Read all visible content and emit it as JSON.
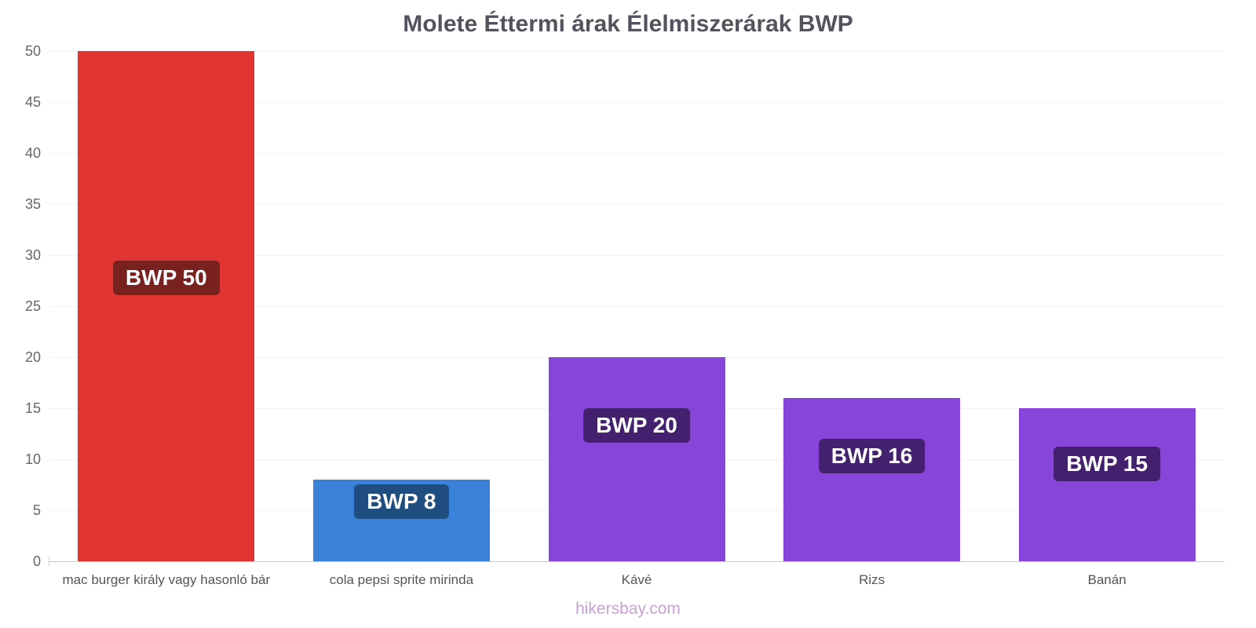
{
  "chart_data": {
    "type": "bar",
    "title": "Molete Éttermi árak Élelmiszerárak BWP",
    "categories": [
      "mac burger király vagy hasonló bár",
      "cola pepsi sprite mirinda",
      "Kávé",
      "Rizs",
      "Banán"
    ],
    "values": [
      50,
      8,
      20,
      16,
      15
    ],
    "value_labels": [
      "BWP 50",
      "BWP 8",
      "BWP 20",
      "BWP 16",
      "BWP 15"
    ],
    "bar_colors": [
      "#e03531",
      "#3a82d9",
      "#8745d9",
      "#8745d9",
      "#8745d9"
    ],
    "label_bg_colors": [
      "#79211f",
      "#1f4d80",
      "#44216e",
      "#44216e",
      "#44216e"
    ],
    "currency": "BWP",
    "ylim": [
      0,
      50
    ],
    "yticks": [
      0,
      5,
      10,
      15,
      20,
      25,
      30,
      35,
      40,
      45,
      50
    ],
    "grid": true,
    "legend": "none"
  },
  "footer": {
    "text": "hikersbay.com"
  }
}
